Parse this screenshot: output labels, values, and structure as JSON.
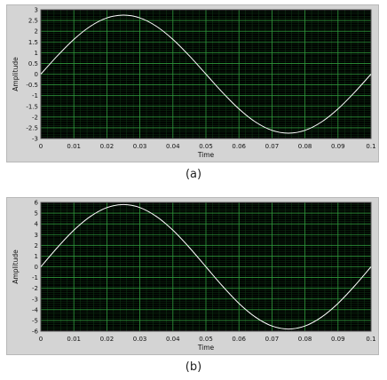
{
  "chart_data": [
    {
      "type": "line",
      "caption": "(a)",
      "xlabel": "Time",
      "ylabel": "Amplitude",
      "xlim": [
        0,
        0.1
      ],
      "ylim": [
        -3,
        3
      ],
      "x_ticks": [
        0,
        0.01,
        0.02,
        0.03,
        0.04,
        0.05,
        0.06,
        0.07,
        0.08,
        0.09,
        0.1
      ],
      "x_tick_labels": [
        "0",
        "0.01",
        "0.02",
        "0.03",
        "0.04",
        "0.05",
        "0.06",
        "0.07",
        "0.08",
        "0.09",
        "0.1"
      ],
      "y_ticks": [
        3,
        2.5,
        2,
        1.5,
        1,
        0.5,
        0,
        -0.5,
        -1,
        -1.5,
        -2,
        -2.5,
        -3
      ],
      "y_tick_labels": [
        "3",
        "2.5",
        "2",
        "1.5",
        "1",
        "0.5",
        "0",
        "-0.5",
        "-1",
        "-1.5",
        "-2",
        "-2.5",
        "-3"
      ],
      "grid": true,
      "series": [
        {
          "x": [
            0,
            0.005,
            0.01,
            0.015,
            0.02,
            0.025,
            0.03,
            0.035,
            0.04,
            0.045,
            0.05,
            0.055,
            0.06,
            0.065,
            0.07,
            0.075,
            0.08,
            0.085,
            0.09,
            0.095,
            0.1
          ],
          "y": [
            0,
            0.85,
            1.62,
            2.23,
            2.62,
            2.75,
            2.62,
            2.23,
            1.62,
            0.85,
            0,
            -0.85,
            -1.62,
            -2.23,
            -2.62,
            -2.75,
            -2.62,
            -2.23,
            -1.62,
            -0.85,
            0
          ]
        }
      ],
      "colors": {
        "plot_bg": "#000000",
        "grid": "#1f6b2a",
        "line": "#ffffff"
      }
    },
    {
      "type": "line",
      "caption": "(b)",
      "xlabel": "Time",
      "ylabel": "Amplitude",
      "xlim": [
        0,
        0.1
      ],
      "ylim": [
        -6,
        6
      ],
      "x_ticks": [
        0,
        0.01,
        0.02,
        0.03,
        0.04,
        0.05,
        0.06,
        0.07,
        0.08,
        0.09,
        0.1
      ],
      "x_tick_labels": [
        "0",
        "0.01",
        "0.02",
        "0.03",
        "0.04",
        "0.05",
        "0.06",
        "0.07",
        "0.08",
        "0.09",
        "0.1"
      ],
      "y_ticks": [
        6,
        5,
        4,
        3,
        2,
        1,
        0,
        -1,
        -2,
        -3,
        -4,
        -5,
        -6
      ],
      "y_tick_labels": [
        "6",
        "5",
        "4",
        "3",
        "2",
        "1",
        "0",
        "-1",
        "-2",
        "-3",
        "-4",
        "-5",
        "-6"
      ],
      "grid": true,
      "series": [
        {
          "x": [
            0,
            0.005,
            0.01,
            0.015,
            0.02,
            0.025,
            0.03,
            0.035,
            0.04,
            0.045,
            0.05,
            0.055,
            0.06,
            0.065,
            0.07,
            0.075,
            0.08,
            0.085,
            0.09,
            0.095,
            0.1
          ],
          "y": [
            0,
            1.79,
            3.41,
            4.69,
            5.52,
            5.8,
            5.52,
            4.69,
            3.41,
            1.79,
            0,
            -1.79,
            -3.41,
            -4.69,
            -5.52,
            -5.8,
            -5.52,
            -4.69,
            -3.41,
            -1.79,
            0
          ]
        }
      ],
      "colors": {
        "plot_bg": "#000000",
        "grid": "#1f6b2a",
        "line": "#ffffff"
      }
    }
  ]
}
